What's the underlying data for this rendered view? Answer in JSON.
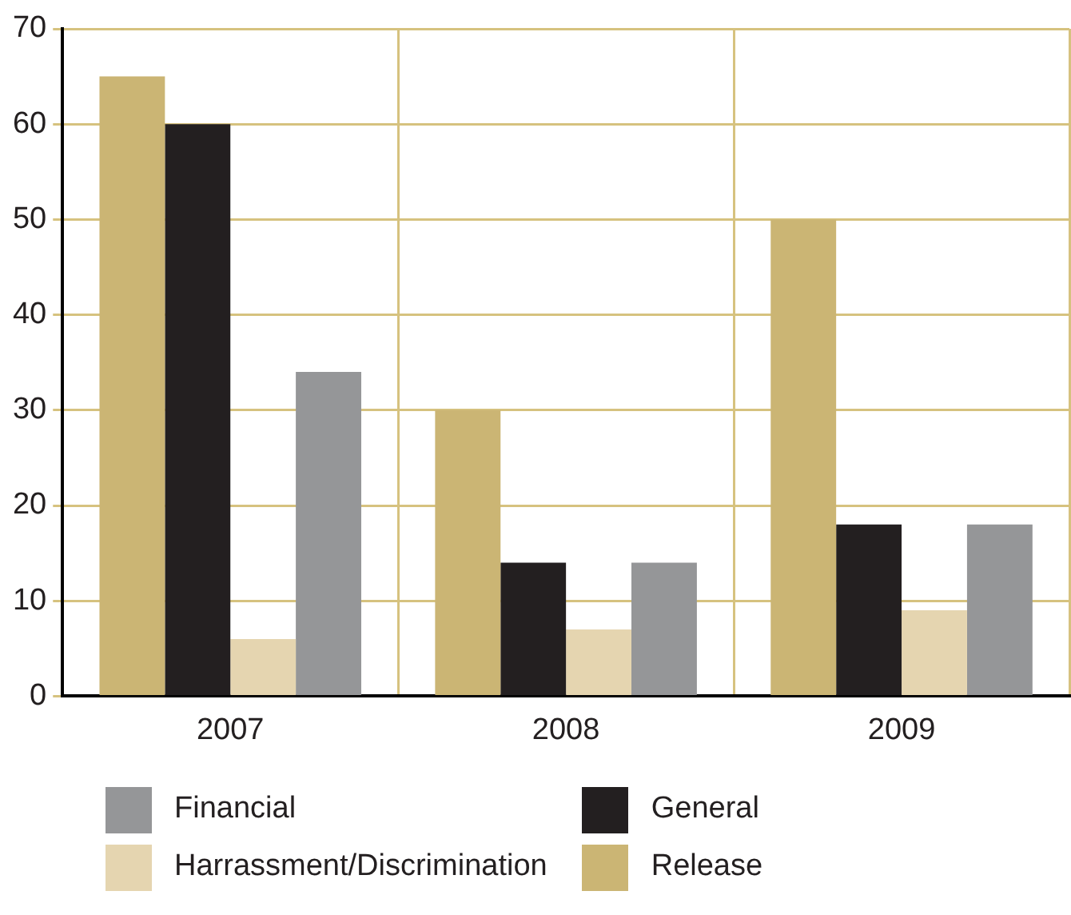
{
  "chart_data": {
    "type": "bar",
    "categories": [
      "2007",
      "2008",
      "2009"
    ],
    "series": [
      {
        "name": "Release",
        "color": "#cbb574",
        "values": [
          65,
          30,
          50
        ]
      },
      {
        "name": "General",
        "color": "#231f20",
        "values": [
          60,
          14,
          18
        ]
      },
      {
        "name": "Harrassment/Discrimination",
        "color": "#e5d5b0",
        "values": [
          6,
          7,
          9
        ]
      },
      {
        "name": "Financial",
        "color": "#959698",
        "values": [
          34,
          14,
          18
        ]
      }
    ],
    "ylim": [
      0,
      70
    ],
    "yticks": [
      0,
      10,
      20,
      30,
      40,
      50,
      60,
      70
    ],
    "grid": true,
    "legend": "bottom"
  }
}
